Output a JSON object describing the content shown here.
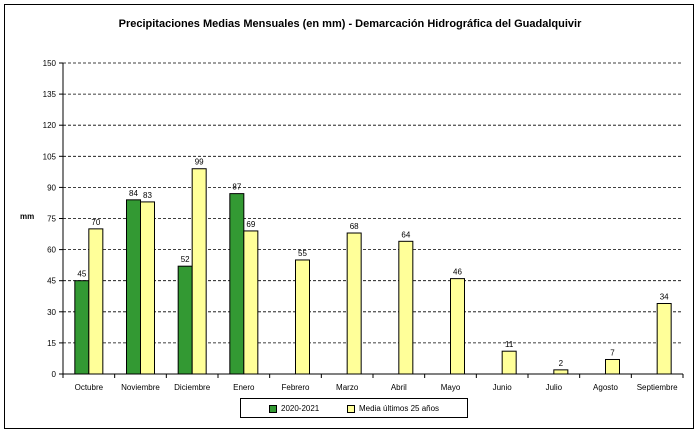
{
  "chart_data": {
    "type": "bar",
    "title": "Precipitaciones  Medias  Mensuales  (en mm)  -  Demarcación  Hidrográfica  del  Guadalquivir",
    "xlabel": "",
    "ylabel": "mm",
    "ylim": [
      0,
      150
    ],
    "yticks": [
      0,
      15,
      30,
      45,
      60,
      75,
      90,
      105,
      120,
      135,
      150
    ],
    "grid": true,
    "legend_position": "bottom",
    "categories": [
      "Octubre",
      "Noviembre",
      "Diciembre",
      "Enero",
      "Febrero",
      "Marzo",
      "Abril",
      "Mayo",
      "Junio",
      "Julio",
      "Agosto",
      "Septiembre"
    ],
    "series": [
      {
        "name": "2020-2021",
        "color": "#339933",
        "values": [
          45,
          84,
          52,
          87,
          null,
          null,
          null,
          null,
          null,
          null,
          null,
          null
        ]
      },
      {
        "name": "Media  últimos  25 años",
        "color": "#ffff99",
        "values": [
          70,
          83,
          99,
          69,
          55,
          68,
          64,
          46,
          11,
          2,
          7,
          34
        ]
      }
    ]
  }
}
